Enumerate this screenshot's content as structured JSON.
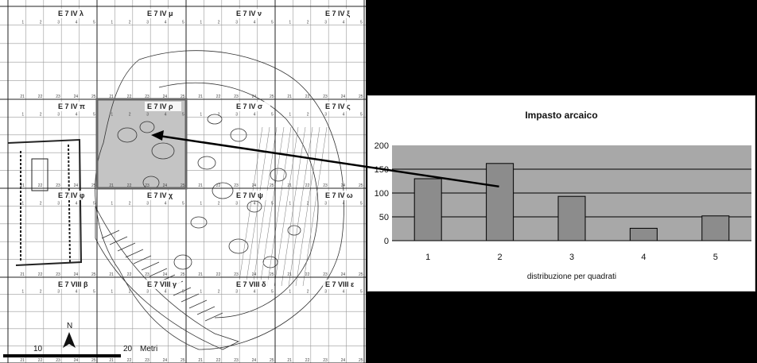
{
  "map": {
    "grid_labels": [
      {
        "id": "E7IV-lambda",
        "text": "E 7 IV λ"
      },
      {
        "id": "E7IV-mu",
        "text": "E 7 IV μ"
      },
      {
        "id": "E7IV-nu",
        "text": "E 7 IV ν"
      },
      {
        "id": "E7IV-xi",
        "text": "E 7 IV ξ"
      },
      {
        "id": "E7IV-pi",
        "text": "E 7 IV π"
      },
      {
        "id": "E7IV-rho",
        "text": "E 7 IV ρ"
      },
      {
        "id": "E7IV-sigma",
        "text": "E 7 IV σ"
      },
      {
        "id": "E7IV-tau",
        "text": "E 7 IV ς"
      },
      {
        "id": "E7IV-phi",
        "text": "E 7 IV φ"
      },
      {
        "id": "E7IV-chi",
        "text": "E 7 IV χ"
      },
      {
        "id": "E7IV-psi",
        "text": "E 7 IV ψ"
      },
      {
        "id": "E7IV-omega",
        "text": "E 7 IV ω"
      },
      {
        "id": "E7VIII-beta",
        "text": "E 7 VIII β"
      },
      {
        "id": "E7VIII-gamma",
        "text": "E 7 VIII γ"
      },
      {
        "id": "E7VIII-delta",
        "text": "E 7 VIII δ"
      },
      {
        "id": "E7VIII-epsilon",
        "text": "E 7 VIII ε"
      }
    ],
    "scale": {
      "label_10": "10",
      "label_20": "20",
      "unit": "Metri"
    },
    "north": "N"
  },
  "chart_data": {
    "type": "bar",
    "title": "Impasto arcaico",
    "xlabel": "distribuzione per quadrati",
    "ylabel": "",
    "categories": [
      "1",
      "2",
      "3",
      "4",
      "5"
    ],
    "values": [
      130,
      162,
      93,
      26,
      52
    ],
    "ylim": [
      0,
      200
    ],
    "yticks": [
      "200",
      "150",
      "100",
      "50",
      "0"
    ],
    "legend": "none",
    "colors": {
      "bar": "#8c8c8c",
      "plot_bg": "#a8a8a8",
      "gridline": "#000000"
    }
  }
}
